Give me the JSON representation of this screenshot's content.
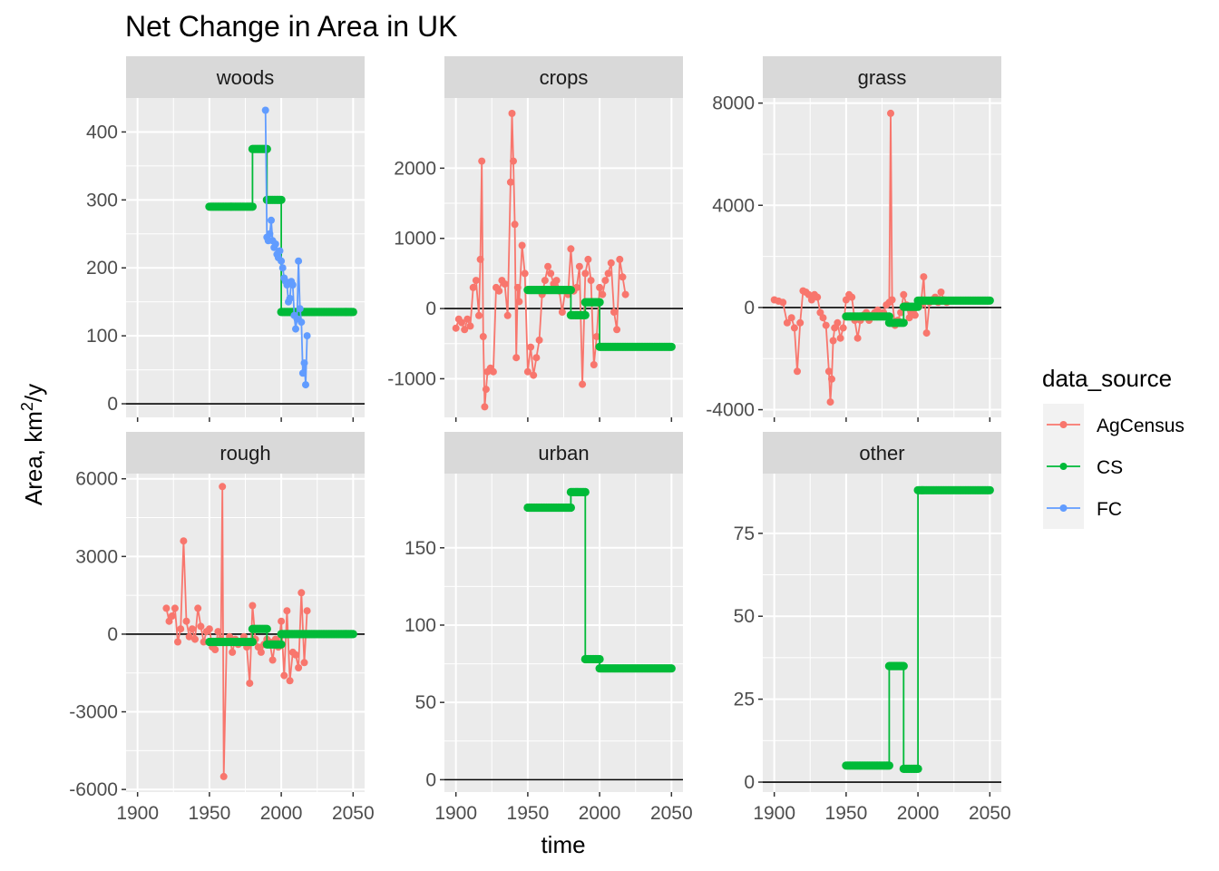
{
  "chart_data": {
    "type": "line",
    "title": "Net Change in Area in UK",
    "xlabel": "time",
    "ylabel": "Area,  km²/y",
    "xlim": [
      1892,
      2058
    ],
    "x_ticks": [
      1900,
      1950,
      2000,
      2050
    ],
    "legend": {
      "title": "data_source",
      "position": "right",
      "entries": [
        {
          "name": "AgCensus",
          "color": "#F8766D"
        },
        {
          "name": "CS",
          "color": "#00BA38"
        },
        {
          "name": "FC",
          "color": "#619CFF"
        }
      ]
    },
    "panels": [
      {
        "name": "woods",
        "ylim": [
          -20,
          450
        ],
        "y_ticks": [
          0,
          100,
          200,
          300,
          400
        ],
        "series": [
          {
            "name": "CS",
            "x": [
              1950,
              1980,
              1980,
              1990,
              1990,
              2000,
              2000,
              2050
            ],
            "y": [
              290,
              290,
              375,
              375,
              300,
              300,
              135,
              135
            ]
          },
          {
            "name": "FC",
            "x": [
              1989,
              1990,
              1991,
              1992,
              1993,
              1994,
              1995,
              1996,
              1997,
              1998,
              1999,
              2000,
              2001,
              2002,
              2003,
              2004,
              2005,
              2006,
              2007,
              2008,
              2009,
              2010,
              2011,
              2012,
              2013,
              2014,
              2015,
              2016,
              2017,
              2018
            ],
            "y": [
              432,
              245,
              240,
              250,
              270,
              240,
              230,
              235,
              220,
              215,
              225,
              210,
              200,
              185,
              180,
              175,
              150,
              155,
              180,
              175,
              130,
              110,
              125,
              210,
              140,
              120,
              45,
              60,
              28,
              100
            ]
          }
        ]
      },
      {
        "name": "crops",
        "ylim": [
          -1550,
          3000
        ],
        "y_ticks": [
          -1000,
          0,
          1000,
          2000
        ],
        "series": [
          {
            "name": "AgCensus",
            "x": [
              1900,
              1902,
              1904,
              1906,
              1908,
              1910,
              1912,
              1914,
              1916,
              1917,
              1918,
              1919,
              1920,
              1921,
              1922,
              1924,
              1926,
              1928,
              1930,
              1932,
              1934,
              1936,
              1938,
              1939,
              1940,
              1941,
              1942,
              1943,
              1944,
              1946,
              1948,
              1950,
              1952,
              1954,
              1956,
              1958,
              1960,
              1962,
              1964,
              1966,
              1968,
              1970,
              1972,
              1974,
              1976,
              1978,
              1980,
              1982,
              1984,
              1986,
              1988,
              1990,
              1992,
              1994,
              1996,
              1998,
              2000,
              2002,
              2004,
              2006,
              2008,
              2010,
              2012,
              2014,
              2016,
              2018
            ],
            "y": [
              -280,
              -150,
              -200,
              -300,
              -150,
              -250,
              300,
              400,
              -100,
              700,
              2100,
              -400,
              -1400,
              -1150,
              -900,
              -850,
              -900,
              300,
              250,
              400,
              350,
              -100,
              1800,
              2780,
              2100,
              1200,
              -700,
              300,
              100,
              900,
              500,
              -900,
              -550,
              -950,
              -700,
              -450,
              200,
              400,
              600,
              500,
              350,
              400,
              250,
              -50,
              250,
              200,
              850,
              250,
              300,
              600,
              -1080,
              500,
              700,
              400,
              -800,
              -400,
              300,
              200,
              400,
              500,
              650,
              -50,
              -300,
              700,
              450,
              200
            ]
          },
          {
            "name": "CS",
            "x": [
              1950,
              1980,
              1980,
              1990,
              1990,
              2000,
              2000,
              2050
            ],
            "y": [
              265,
              265,
              -95,
              -95,
              90,
              90,
              -545,
              -545
            ]
          }
        ]
      },
      {
        "name": "grass",
        "ylim": [
          -4300,
          8200
        ],
        "y_ticks": [
          -4000,
          0,
          4000,
          8000
        ],
        "series": [
          {
            "name": "AgCensus",
            "x": [
              1900,
              1903,
              1906,
              1909,
              1912,
              1914,
              1916,
              1918,
              1920,
              1922,
              1924,
              1926,
              1928,
              1930,
              1932,
              1934,
              1936,
              1938,
              1939,
              1940,
              1941,
              1942,
              1944,
              1946,
              1948,
              1950,
              1952,
              1954,
              1956,
              1958,
              1960,
              1962,
              1964,
              1966,
              1968,
              1970,
              1972,
              1974,
              1976,
              1978,
              1980,
              1981,
              1982,
              1984,
              1986,
              1988,
              1990,
              1992,
              1994,
              1996,
              1998,
              2000,
              2002,
              2004,
              2006,
              2008,
              2010,
              2012,
              2014,
              2016,
              2018,
              2020
            ],
            "y": [
              300,
              250,
              200,
              -600,
              -400,
              -800,
              -2500,
              -600,
              650,
              600,
              500,
              300,
              500,
              400,
              -200,
              -400,
              -700,
              -2500,
              -3700,
              -2800,
              -1300,
              -800,
              -600,
              -1200,
              -800,
              300,
              500,
              400,
              -500,
              -1200,
              -500,
              -300,
              -200,
              -500,
              -300,
              -200,
              -100,
              -300,
              -200,
              100,
              200,
              7600,
              300,
              -700,
              -500,
              -200,
              500,
              100,
              -400,
              -200,
              -300,
              200,
              100,
              1200,
              -1000,
              200,
              300,
              400,
              200,
              600,
              300,
              200
            ]
          },
          {
            "name": "CS",
            "x": [
              1950,
              1980,
              1980,
              1990,
              1990,
              2000,
              2000,
              2050
            ],
            "y": [
              -350,
              -350,
              -600,
              -600,
              30,
              30,
              270,
              270
            ]
          }
        ]
      },
      {
        "name": "rough",
        "ylim": [
          -6100,
          6200
        ],
        "y_ticks": [
          -6000,
          -3000,
          0,
          3000,
          6000
        ],
        "series": [
          {
            "name": "AgCensus",
            "x": [
              1920,
              1922,
              1924,
              1926,
              1928,
              1930,
              1932,
              1934,
              1936,
              1938,
              1940,
              1942,
              1944,
              1946,
              1948,
              1950,
              1952,
              1954,
              1956,
              1958,
              1959,
              1960,
              1962,
              1964,
              1966,
              1968,
              1970,
              1972,
              1974,
              1976,
              1978,
              1980,
              1982,
              1984,
              1986,
              1988,
              1990,
              1992,
              1994,
              1996,
              1998,
              2000,
              2002,
              2004,
              2006,
              2008,
              2010,
              2012,
              2014,
              2016,
              2018
            ],
            "y": [
              1000,
              500,
              700,
              1000,
              -300,
              200,
              3600,
              500,
              -100,
              200,
              -200,
              1000,
              300,
              -300,
              100,
              200,
              -500,
              -600,
              100,
              -200,
              5700,
              -5500,
              -300,
              -100,
              -700,
              -200,
              -400,
              -300,
              -100,
              -500,
              -1900,
              1100,
              -200,
              -500,
              -700,
              -400,
              -200,
              -300,
              -1000,
              -200,
              -500,
              500,
              -1600,
              900,
              -1800,
              -700,
              -800,
              -1300,
              1600,
              -1100,
              900
            ]
          },
          {
            "name": "CS",
            "x": [
              1950,
              1980,
              1980,
              1990,
              1990,
              2000,
              2000,
              2050
            ],
            "y": [
              -300,
              -300,
              200,
              200,
              -400,
              -400,
              0,
              0
            ]
          }
        ]
      },
      {
        "name": "urban",
        "ylim": [
          -8,
          198
        ],
        "y_ticks": [
          0,
          50,
          100,
          150
        ],
        "series": [
          {
            "name": "CS",
            "x": [
              1950,
              1980,
              1980,
              1990,
              1990,
              2000,
              2000,
              2050
            ],
            "y": [
              176,
              176,
              186,
              186,
              78,
              78,
              72,
              72
            ]
          }
        ]
      },
      {
        "name": "other",
        "ylim": [
          -3,
          93
        ],
        "y_ticks": [
          0,
          25,
          50,
          75
        ],
        "series": [
          {
            "name": "CS",
            "x": [
              1950,
              1980,
              1980,
              1990,
              1990,
              2000,
              2000,
              2050
            ],
            "y": [
              5,
              5,
              35,
              35,
              4,
              4,
              88,
              88
            ]
          }
        ]
      }
    ]
  }
}
